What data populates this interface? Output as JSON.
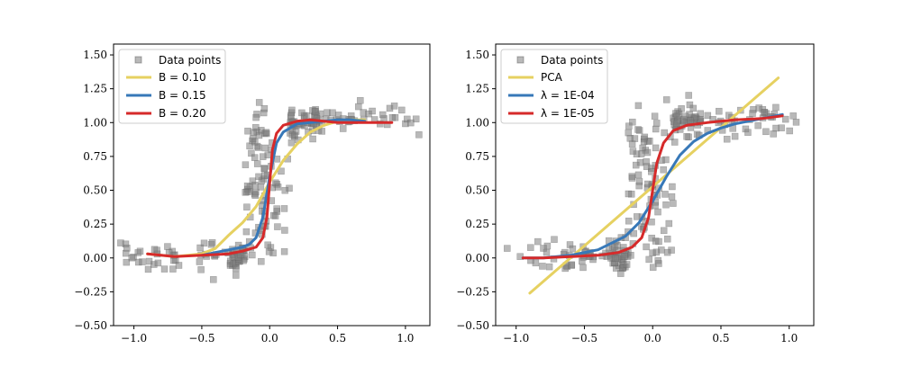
{
  "chart_data": [
    {
      "type": "scatter",
      "xlim": [
        -1.15,
        1.18
      ],
      "ylim": [
        -0.5,
        1.58
      ],
      "x_ticks": [
        -1.0,
        -0.5,
        0.0,
        0.5,
        1.0
      ],
      "x_tick_labels": [
        "−1.0",
        "−0.5",
        "0.0",
        "0.5",
        "1.0"
      ],
      "y_ticks": [
        -0.5,
        -0.25,
        0.0,
        0.25,
        0.5,
        0.75,
        1.0,
        1.25,
        1.5
      ],
      "y_tick_labels": [
        "−0.50",
        "−0.25",
        "0.00",
        "0.25",
        "0.50",
        "0.75",
        "1.00",
        "1.25",
        "1.50"
      ],
      "grid": false,
      "legend_position": "top-left",
      "scatter_label": "Data points",
      "series": [
        {
          "name": "B = 0.10",
          "color": "#e6d161",
          "type": "line",
          "x": [
            -0.9,
            -0.8,
            -0.7,
            -0.6,
            -0.5,
            -0.4,
            -0.3,
            -0.2,
            -0.1,
            0.0,
            0.1,
            0.2,
            0.3,
            0.4,
            0.5,
            0.6,
            0.7
          ],
          "y": [
            0.03,
            0.02,
            0.01,
            0.02,
            0.03,
            0.07,
            0.17,
            0.26,
            0.38,
            0.56,
            0.72,
            0.84,
            0.93,
            0.98,
            1.01,
            1.02,
            1.02
          ]
        },
        {
          "name": "B = 0.15",
          "color": "#3778b8",
          "type": "line",
          "x": [
            -0.5,
            -0.4,
            -0.3,
            -0.2,
            -0.15,
            -0.1,
            -0.05,
            0.0,
            0.05,
            0.1,
            0.2,
            0.3,
            0.4,
            0.5,
            0.6,
            0.7
          ],
          "y": [
            0.02,
            0.04,
            0.06,
            0.08,
            0.1,
            0.15,
            0.3,
            0.6,
            0.85,
            0.93,
            0.99,
            1.0,
            1.01,
            1.02,
            1.02,
            1.01
          ]
        },
        {
          "name": "B = 0.20",
          "color": "#d62a2a",
          "type": "line",
          "x": [
            -0.9,
            -0.7,
            -0.5,
            -0.3,
            -0.2,
            -0.1,
            -0.05,
            -0.02,
            0.0,
            0.02,
            0.05,
            0.1,
            0.2,
            0.3,
            0.5,
            0.7,
            0.9
          ],
          "y": [
            0.03,
            0.01,
            0.02,
            0.03,
            0.05,
            0.08,
            0.15,
            0.3,
            0.55,
            0.8,
            0.92,
            0.98,
            1.01,
            1.02,
            1.0,
            1.0,
            1.0
          ]
        }
      ]
    },
    {
      "type": "scatter",
      "xlim": [
        -1.15,
        1.18
      ],
      "ylim": [
        -0.5,
        1.58
      ],
      "x_ticks": [
        -1.0,
        -0.5,
        0.0,
        0.5,
        1.0
      ],
      "x_tick_labels": [
        "−1.0",
        "−0.5",
        "0.0",
        "0.5",
        "1.0"
      ],
      "y_ticks": [
        -0.5,
        -0.25,
        0.0,
        0.25,
        0.5,
        0.75,
        1.0,
        1.25,
        1.5
      ],
      "y_tick_labels": [
        "−0.50",
        "−0.25",
        "0.00",
        "0.25",
        "0.50",
        "0.75",
        "1.00",
        "1.25",
        "1.50"
      ],
      "grid": false,
      "legend_position": "top-left",
      "scatter_label": "Data points",
      "series": [
        {
          "name": "PCA",
          "color": "#e6d161",
          "type": "line",
          "x": [
            -0.9,
            0.92
          ],
          "y": [
            -0.26,
            1.33
          ]
        },
        {
          "name": "λ = 1E-04",
          "color": "#3778b8",
          "type": "line",
          "x": [
            -0.95,
            -0.8,
            -0.6,
            -0.4,
            -0.2,
            -0.1,
            0.0,
            0.1,
            0.2,
            0.3,
            0.4,
            0.5,
            0.6,
            0.7,
            0.8,
            0.95
          ],
          "y": [
            0.0,
            0.0,
            0.02,
            0.06,
            0.16,
            0.26,
            0.42,
            0.6,
            0.76,
            0.86,
            0.92,
            0.96,
            0.99,
            1.01,
            1.03,
            1.06
          ]
        },
        {
          "name": "λ = 1E-05",
          "color": "#d62a2a",
          "type": "line",
          "x": [
            -0.95,
            -0.8,
            -0.6,
            -0.4,
            -0.25,
            -0.15,
            -0.08,
            -0.03,
            0.0,
            0.03,
            0.08,
            0.15,
            0.25,
            0.4,
            0.6,
            0.8,
            0.95
          ],
          "y": [
            0.0,
            0.0,
            0.01,
            0.02,
            0.04,
            0.08,
            0.15,
            0.3,
            0.5,
            0.7,
            0.85,
            0.94,
            0.98,
            1.0,
            1.02,
            1.03,
            1.05
          ]
        }
      ]
    }
  ],
  "colors": {
    "scatter": "#808080",
    "axes": "#000000",
    "background": "#ffffff"
  }
}
